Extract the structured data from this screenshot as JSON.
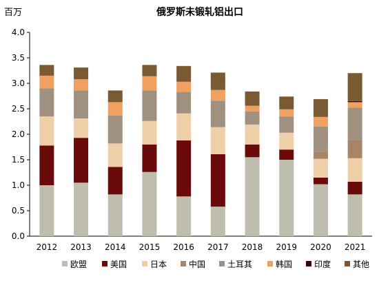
{
  "chart_data": {
    "type": "bar",
    "stacked": true,
    "title": "俄罗斯未锻轧铝出口",
    "unit_label": "百万",
    "categories": [
      "2012",
      "2013",
      "2014",
      "2015",
      "2016",
      "2017",
      "2018",
      "2019",
      "2020",
      "2021"
    ],
    "ylim": [
      0,
      4.0
    ],
    "yticks": [
      "0.0",
      "0.5",
      "1.0",
      "1.5",
      "2.0",
      "2.5",
      "3.0",
      "3.5",
      "4.0"
    ],
    "grid": false,
    "legend_position": "bottom",
    "series": [
      {
        "name": "欧盟",
        "color": "#BEBDAE",
        "values": [
          1.0,
          1.05,
          0.82,
          1.26,
          0.78,
          0.58,
          1.55,
          1.5,
          1.02,
          0.82
        ]
      },
      {
        "name": "美国",
        "color": "#6B0A0A",
        "values": [
          0.78,
          0.88,
          0.54,
          0.54,
          1.1,
          1.03,
          0.25,
          0.2,
          0.13,
          0.25
        ]
      },
      {
        "name": "日本",
        "color": "#EFCFA8",
        "values": [
          0.57,
          0.38,
          0.46,
          0.46,
          0.53,
          0.53,
          0.39,
          0.33,
          0.37,
          0.46
        ]
      },
      {
        "name": "中国",
        "color": "#A98466",
        "values": [
          0.0,
          0.0,
          0.0,
          0.0,
          0.0,
          0.0,
          0.0,
          0.0,
          0.14,
          0.36
        ]
      },
      {
        "name": "土耳其",
        "color": "#A09080",
        "values": [
          0.55,
          0.55,
          0.55,
          0.6,
          0.42,
          0.52,
          0.26,
          0.32,
          0.49,
          0.63
        ]
      },
      {
        "name": "韩国",
        "color": "#F0A060",
        "values": [
          0.25,
          0.22,
          0.26,
          0.28,
          0.2,
          0.21,
          0.11,
          0.14,
          0.19,
          0.11
        ]
      },
      {
        "name": "印度",
        "color": "#3A0505",
        "values": [
          0.0,
          0.0,
          0.0,
          0.0,
          0.0,
          0.0,
          0.0,
          0.0,
          0.0,
          0.02
        ]
      },
      {
        "name": "其他",
        "color": "#7A5A32",
        "values": [
          0.21,
          0.23,
          0.23,
          0.22,
          0.31,
          0.34,
          0.28,
          0.25,
          0.35,
          0.55
        ]
      }
    ]
  }
}
